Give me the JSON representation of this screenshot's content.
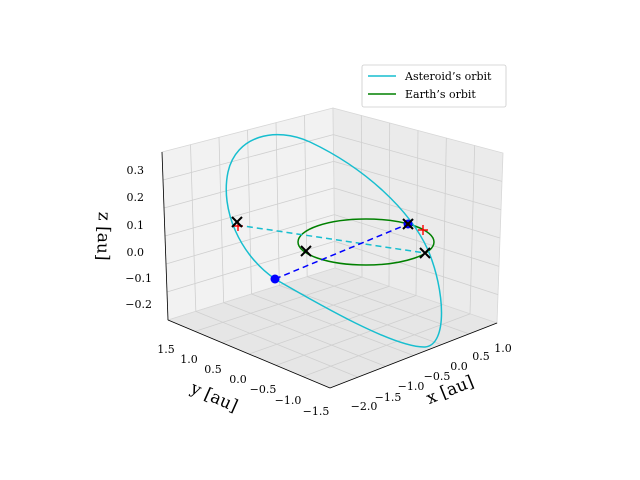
{
  "chart_data": {
    "type": "line3d",
    "xlabel": "x [au]",
    "ylabel": "y [au]",
    "zlabel": "z [au]",
    "x_ticks": [
      "−2.0",
      "−1.5",
      "−1.0",
      "−0.5",
      "0.0",
      "0.5",
      "1.0"
    ],
    "y_ticks": [
      "1.5",
      "1.0",
      "0.5",
      "0.0",
      "−0.5",
      "−1.0",
      "−1.5"
    ],
    "z_ticks": [
      "0.3",
      "0.2",
      "0.1",
      "0.0",
      "−0.1",
      "−0.2"
    ],
    "grid": true,
    "legend_position": "top-right",
    "series": [
      {
        "name": "Asteroid’s orbit",
        "color": "#17becf",
        "style": "solid"
      },
      {
        "name": "Earth’s orbit",
        "color": "#008000",
        "style": "solid"
      }
    ],
    "markers": {
      "cross_black": 4,
      "plus_red": 2,
      "dot_blue": 2
    },
    "colors": {
      "asteroid": "#17becf",
      "earth": "#008000",
      "node_line": "#17becf",
      "apsis_line": "#0000ff",
      "pane": "#f2f2f2",
      "grid": "#d0d0d0"
    }
  }
}
